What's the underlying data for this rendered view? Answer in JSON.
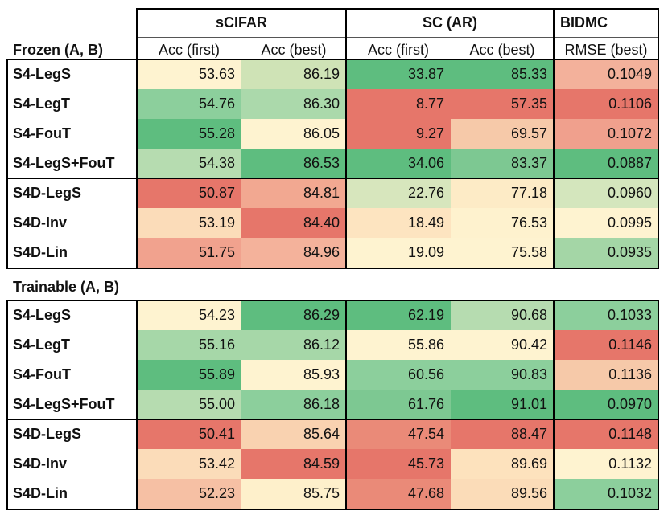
{
  "headers": {
    "groups": [
      "sCIFAR",
      "SC (AR)",
      "BIDMC"
    ],
    "columns": [
      "Acc (first)",
      "Acc (best)",
      "Acc (first)",
      "Acc (best)",
      "RMSE (best)"
    ]
  },
  "sections": [
    {
      "title": "Frozen (A, B)",
      "rows": [
        {
          "name": "S4-LegS",
          "values": [
            "53.63",
            "86.19",
            "33.87",
            "85.33",
            "0.1049"
          ]
        },
        {
          "name": "S4-LegT",
          "values": [
            "54.76",
            "86.30",
            "8.77",
            "57.35",
            "0.1106"
          ]
        },
        {
          "name": "S4-FouT",
          "values": [
            "55.28",
            "86.05",
            "9.27",
            "69.57",
            "0.1072"
          ]
        },
        {
          "name": "S4-LegS+FouT",
          "values": [
            "54.38",
            "86.53",
            "34.06",
            "83.37",
            "0.0887"
          ]
        },
        {
          "name": "S4D-LegS",
          "values": [
            "50.87",
            "84.81",
            "22.76",
            "77.18",
            "0.0960"
          ]
        },
        {
          "name": "S4D-Inv",
          "values": [
            "53.19",
            "84.40",
            "18.49",
            "76.53",
            "0.0995"
          ]
        },
        {
          "name": "S4D-Lin",
          "values": [
            "51.75",
            "84.96",
            "19.09",
            "75.58",
            "0.0935"
          ]
        }
      ],
      "colors": [
        [
          "#fef3d0",
          "#cfe3b6",
          "#5ebd7f",
          "#5ebd7f",
          "#f3b19b"
        ],
        [
          "#8ccf9c",
          "#abd9ab",
          "#e6766a",
          "#e6766a",
          "#e6766a"
        ],
        [
          "#5ebd7f",
          "#fef3d0",
          "#e6766a",
          "#f6c9a9",
          "#f0a08d"
        ],
        [
          "#b6dcb0",
          "#5ebd7f",
          "#5ebd7f",
          "#7dc892",
          "#5ebd7f"
        ],
        [
          "#e6766a",
          "#f2a891",
          "#d7e6bd",
          "#fdebc6",
          "#d4e6bd"
        ],
        [
          "#fbdcb9",
          "#e6766a",
          "#fde4c0",
          "#fef2ce",
          "#fef3d0"
        ],
        [
          "#f1a28e",
          "#f4b29b",
          "#fef3d0",
          "#fef3d0",
          "#a4d6a6"
        ]
      ]
    },
    {
      "title": "Trainable (A, B)",
      "rows": [
        {
          "name": "S4-LegS",
          "values": [
            "54.23",
            "86.29",
            "62.19",
            "90.68",
            "0.1033"
          ]
        },
        {
          "name": "S4-LegT",
          "values": [
            "55.16",
            "86.12",
            "55.86",
            "90.42",
            "0.1146"
          ]
        },
        {
          "name": "S4-FouT",
          "values": [
            "55.89",
            "85.93",
            "60.56",
            "90.83",
            "0.1136"
          ]
        },
        {
          "name": "S4-LegS+FouT",
          "values": [
            "55.00",
            "86.18",
            "61.76",
            "91.01",
            "0.0970"
          ]
        },
        {
          "name": "S4D-LegS",
          "values": [
            "50.41",
            "85.64",
            "47.54",
            "88.47",
            "0.1148"
          ]
        },
        {
          "name": "S4D-Inv",
          "values": [
            "53.42",
            "84.59",
            "45.73",
            "89.69",
            "0.1132"
          ]
        },
        {
          "name": "S4D-Lin",
          "values": [
            "52.23",
            "85.75",
            "47.68",
            "89.56",
            "0.1032"
          ]
        }
      ],
      "colors": [
        [
          "#fef3d0",
          "#5ebd7f",
          "#5ebd7f",
          "#b6dcb0",
          "#8ccf9c"
        ],
        [
          "#a6d7a8",
          "#a6d7a8",
          "#fef3d0",
          "#fef3d0",
          "#e6766a"
        ],
        [
          "#5ebd7f",
          "#fef3d0",
          "#8ccf9c",
          "#8ccf9c",
          "#f6c9a9"
        ],
        [
          "#b6dcb0",
          "#8ccf9c",
          "#7dc892",
          "#5ebd7f",
          "#5ebd7f"
        ],
        [
          "#e6766a",
          "#f9d2b0",
          "#ea8a78",
          "#e6766a",
          "#e6766a"
        ],
        [
          "#fbdcb9",
          "#e6766a",
          "#e6766a",
          "#fde2bd",
          "#fef3d0"
        ],
        [
          "#f6c0a4",
          "#fef0cb",
          "#ea8a78",
          "#fbdcb8",
          "#8ccf9c"
        ]
      ]
    }
  ]
}
